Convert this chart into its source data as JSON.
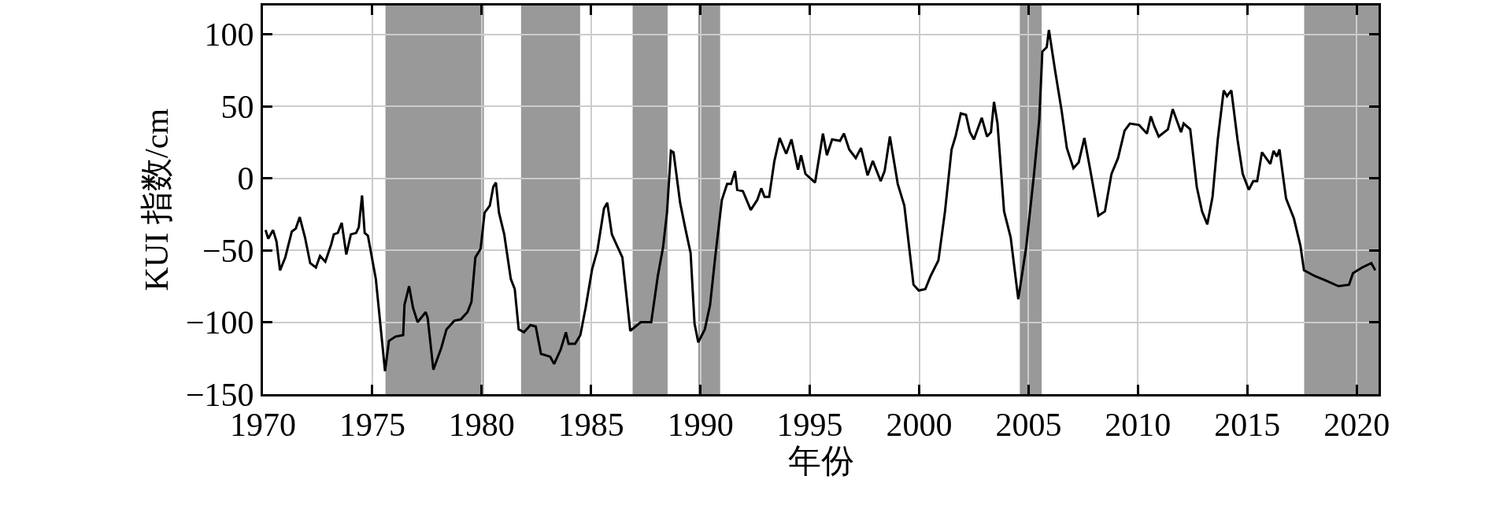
{
  "chart_data": {
    "type": "line",
    "xlabel": "年份",
    "ylabel": "KUI 指数/cm",
    "x": [
      1970.12,
      1970.24,
      1970.46,
      1970.62,
      1970.78,
      1971.02,
      1971.32,
      1971.5,
      1971.68,
      1971.92,
      1972.16,
      1972.42,
      1972.61,
      1972.85,
      1973.12,
      1973.24,
      1973.42,
      1973.6,
      1973.81,
      1974.02,
      1974.26,
      1974.38,
      1974.53,
      1974.65,
      1974.8,
      1975.16,
      1975.58,
      1975.76,
      1976.06,
      1976.41,
      1976.47,
      1976.68,
      1976.86,
      1977.07,
      1977.44,
      1977.53,
      1977.79,
      1978.15,
      1978.39,
      1978.75,
      1979.05,
      1979.35,
      1979.53,
      1979.71,
      1979.95,
      1980.13,
      1980.37,
      1980.53,
      1980.65,
      1980.79,
      1981.03,
      1981.33,
      1981.51,
      1981.69,
      1981.93,
      1982.23,
      1982.47,
      1982.71,
      1983.13,
      1983.31,
      1983.61,
      1983.85,
      1983.97,
      1984.27,
      1984.51,
      1984.75,
      1985.05,
      1985.29,
      1985.59,
      1985.74,
      1985.95,
      1986.19,
      1986.43,
      1986.79,
      1987.27,
      1987.75,
      1988.05,
      1988.29,
      1988.47,
      1988.65,
      1988.77,
      1989.07,
      1989.31,
      1989.55,
      1989.73,
      1989.9,
      1990.2,
      1990.44,
      1990.68,
      1990.98,
      1991.22,
      1991.4,
      1991.58,
      1991.68,
      1991.94,
      1992.3,
      1992.6,
      1992.78,
      1992.93,
      1993.14,
      1993.38,
      1993.62,
      1993.92,
      1994.16,
      1994.46,
      1994.6,
      1994.8,
      1995.24,
      1995.6,
      1995.78,
      1996.02,
      1996.38,
      1996.56,
      1996.8,
      1997.1,
      1997.34,
      1997.64,
      1997.88,
      1998.24,
      1998.42,
      1998.66,
      1999.02,
      1999.32,
      1999.74,
      1999.98,
      2000.28,
      2000.52,
      2000.88,
      2001.18,
      2001.48,
      2001.66,
      2001.9,
      2002.14,
      2002.32,
      2002.5,
      2002.86,
      2003.1,
      2003.28,
      2003.42,
      2003.58,
      2003.88,
      2004.18,
      2004.53,
      2004.89,
      2005.25,
      2005.49,
      2005.63,
      2005.83,
      2005.93,
      2006.21,
      2006.51,
      2006.75,
      2007.05,
      2007.29,
      2007.55,
      2007.83,
      2008.19,
      2008.49,
      2008.79,
      2009.09,
      2009.39,
      2009.63,
      2010.05,
      2010.41,
      2010.59,
      2010.75,
      2010.95,
      2011.37,
      2011.59,
      2011.97,
      2012.09,
      2012.39,
      2012.69,
      2012.93,
      2013.17,
      2013.41,
      2013.65,
      2013.92,
      2014.07,
      2014.27,
      2014.55,
      2014.79,
      2015.07,
      2015.27,
      2015.45,
      2015.67,
      2016.05,
      2016.2,
      2016.35,
      2016.47,
      2016.77,
      2017.13,
      2017.43,
      2017.59,
      2018.09,
      2018.57,
      2019.17,
      2019.65,
      2019.83,
      2020.25,
      2020.67,
      2020.85
    ],
    "series": [
      {
        "color": "#000000",
        "values": [
          -36,
          -42,
          -36,
          -44,
          -64,
          -55,
          -37,
          -35,
          -27,
          -41,
          -59,
          -62,
          -54,
          -58,
          -46,
          -39,
          -38,
          -31,
          -53,
          -39,
          -38,
          -34,
          -12,
          -38,
          -40,
          -70,
          -134,
          -113,
          -110,
          -109,
          -88,
          -75,
          -90,
          -100,
          -93,
          -97,
          -133,
          -118,
          -105,
          -99,
          -98,
          -93,
          -86,
          -55,
          -49,
          -24,
          -19,
          -6,
          -3,
          -24,
          -39,
          -70,
          -77,
          -105,
          -107,
          -102,
          -103,
          -122,
          -124,
          -129,
          -119,
          -107,
          -115,
          -115,
          -109,
          -90,
          -63,
          -50,
          -21,
          -17,
          -39,
          -47,
          -55,
          -106,
          -100,
          -100,
          -68,
          -48,
          -24,
          19,
          18,
          -17,
          -35,
          -52,
          -101,
          -114,
          -105,
          -88,
          -54,
          -15,
          -4,
          -4,
          5,
          -8,
          -9,
          -22,
          -15,
          -7,
          -13,
          -13,
          12,
          28,
          17,
          27,
          6,
          16,
          3,
          -3,
          31,
          16,
          27,
          26,
          31,
          20,
          14,
          21,
          2,
          12,
          -2,
          5,
          29,
          -4,
          -19,
          -74,
          -78,
          -77,
          -68,
          -57,
          -23,
          20,
          29,
          45,
          44,
          32,
          27,
          42,
          29,
          32,
          53,
          38,
          -23,
          -41,
          -84,
          -48,
          3,
          41,
          88,
          91,
          103,
          75,
          47,
          21,
          7,
          11,
          28,
          5,
          -26,
          -23,
          3,
          14,
          33,
          38,
          37,
          31,
          43,
          36,
          29,
          34,
          48,
          32,
          38,
          34,
          -6,
          -23,
          -32,
          -13,
          27,
          61,
          57,
          61,
          27,
          3,
          -8,
          -2,
          -2,
          18,
          10,
          19,
          15,
          20,
          -14,
          -28,
          -47,
          -64,
          -68,
          -71,
          -75,
          -74,
          -66,
          -62,
          -59,
          -64
        ]
      }
    ],
    "xlim": [
      1970,
      2021
    ],
    "xticks": [
      1970,
      1975,
      1980,
      1985,
      1990,
      1995,
      2000,
      2005,
      2010,
      2015,
      2020
    ],
    "ylim": [
      -150,
      120
    ],
    "yticks": [
      {
        "value": -150,
        "label": "−150"
      },
      {
        "value": -100,
        "label": "−100"
      },
      {
        "value": -50,
        "label": "−50"
      },
      0,
      50,
      100
    ],
    "bands": [
      {
        "axis": "x",
        "from": 1975.6,
        "to": 1980.1,
        "color": "#999999"
      },
      {
        "axis": "x",
        "from": 1981.8,
        "to": 1984.5,
        "color": "#999999"
      },
      {
        "axis": "x",
        "from": 1986.9,
        "to": 1988.5,
        "color": "#999999"
      },
      {
        "axis": "x",
        "from": 1989.9,
        "to": 1990.9,
        "color": "#999999"
      },
      {
        "axis": "x",
        "from": 2004.6,
        "to": 2005.6,
        "color": "#999999"
      },
      {
        "axis": "x",
        "from": 2017.6,
        "to": 2021,
        "color": "#999999"
      }
    ],
    "grid": true,
    "marker": "none",
    "line_style": "solid"
  }
}
